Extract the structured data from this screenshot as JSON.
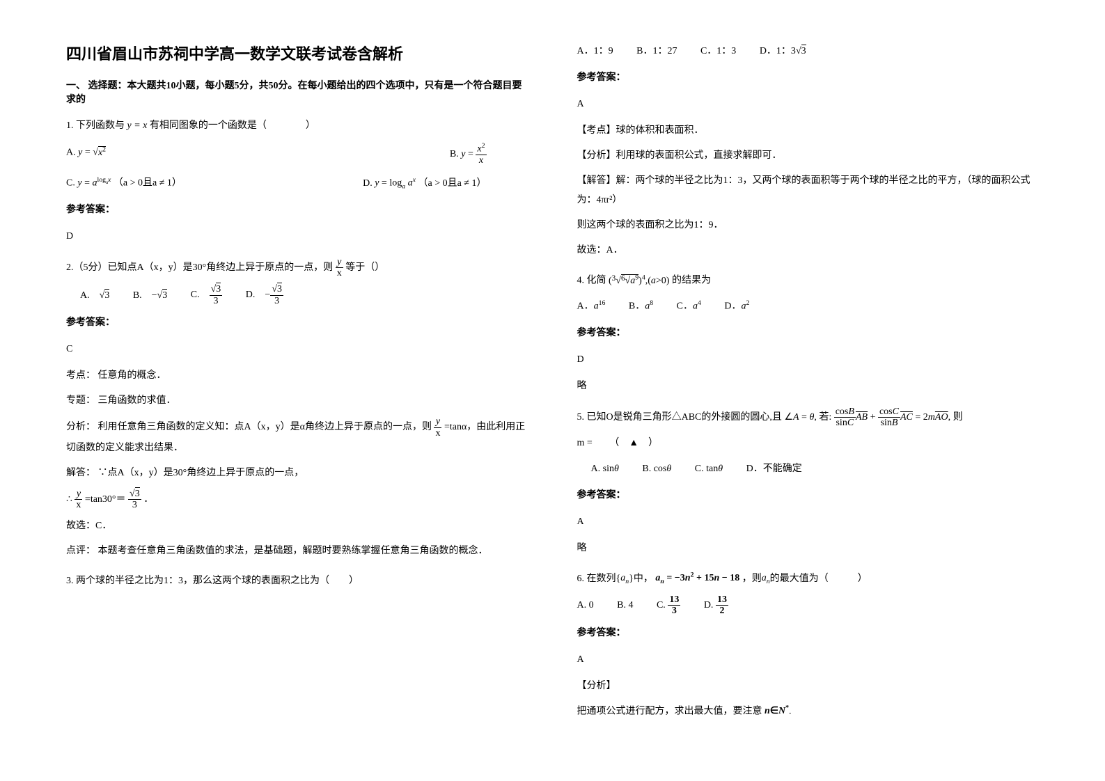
{
  "title": "四川省眉山市苏祠中学高一数学文联考试卷含解析",
  "section1": {
    "header": "一、 选择题：本大题共10小题，每小题5分，共50分。在每小题给出的四个选项中，只有是一个符合题目要求的"
  },
  "q1": {
    "stem_pre": "1. 下列函数与",
    "stem_post": " 有相同图象的一个函数是（　　　　）",
    "optA_label": "A.",
    "optB_label": "B.",
    "optC_label": "C.",
    "optC_cond": "（a > 0且a ≠ 1）",
    "optD_label": "D.",
    "optD_cond": "（a > 0且a ≠ 1）",
    "answer_label": "参考答案：",
    "answer": "D"
  },
  "q2": {
    "stem": "2.（5分）已知点A（x，y）是30°角终边上异于原点的一点，则",
    "stem_post": "等于（）",
    "optA": "A.",
    "optB": "B.",
    "optC": "C.",
    "optD": "D.",
    "answer_label": "参考答案：",
    "answer": "C",
    "kaodian_label": "考点：",
    "kaodian": "任意角的概念．",
    "zhuanti_label": "专题：",
    "zhuanti": "三角函数的求值．",
    "fenxi_label": "分析：",
    "fenxi": "利用任意角三角函数的定义知：点A（x，y）是α角终边上异于原点的一点，则",
    "fenxi_post": "=tanα，由此利用正切函数的定义能求出结果．",
    "jieda_label": "解答：",
    "jieda": "∵点A（x，y）是30°角终边上异于原点的一点，",
    "jieda2_pre": "∴",
    "jieda2_mid": "=tan30°＝",
    "jieda2_post": "．",
    "guxuan": "故选：C．",
    "dianping_label": "点评：",
    "dianping": "本题考查任意角三角函数值的求法，是基础题，解题时要熟练掌握任意角三角函数的概念．"
  },
  "q3": {
    "stem": "3. 两个球的半径之比为1：3，那么这两个球的表面积之比为（　　）",
    "optA": "A．1：9",
    "optB": "B．1：27",
    "optC": "C．1：3",
    "optD": "D．1：3",
    "answer_label": "参考答案：",
    "answer": "A",
    "kaodian_label": "【考点】",
    "kaodian": "球的体积和表面积．",
    "fenxi_label": "【分析】",
    "fenxi": "利用球的表面积公式，直接求解即可．",
    "jieda_label": "【解答】",
    "jieda": "解：两个球的半径之比为1：3，又两个球的表面积等于两个球的半径之比的平方，（球的面积公式为：4πr²）",
    "jieda2": "则这两个球的表面积之比为1：9．",
    "guxuan": "故选：A．"
  },
  "q4": {
    "stem_pre": "4. 化简",
    "stem_post": "的结果为",
    "optA": "A．",
    "optB": "B．",
    "optC": "C．",
    "optD": "D．",
    "answer_label": "参考答案：",
    "answer": "D",
    "lue": "略"
  },
  "q5": {
    "stem_pre": "5. 已知O是锐角三角形△ABC的外接圆的圆心,且",
    "stem_mid": "若:",
    "stem_post": "则",
    "m_eq": "m =",
    "blank": "　　（　▲　）",
    "optA": "A.",
    "optB": "B.",
    "optC": "C.",
    "optD": "D．不能确定",
    "answer_label": "参考答案：",
    "answer": "A",
    "lue": "略"
  },
  "q6": {
    "stem_pre": "6. 在数列{",
    "stem_mid": "}中，",
    "stem_post": "，则",
    "stem_end": "的最大值为（　　　）",
    "optA": "A. 0",
    "optB": "B. 4",
    "optC": "C.",
    "optD": "D.",
    "answer_label": "参考答案：",
    "answer": "A",
    "fenxi_label": "【分析】",
    "fenxi": "把通项公式进行配方，求出最大值，要注意"
  }
}
